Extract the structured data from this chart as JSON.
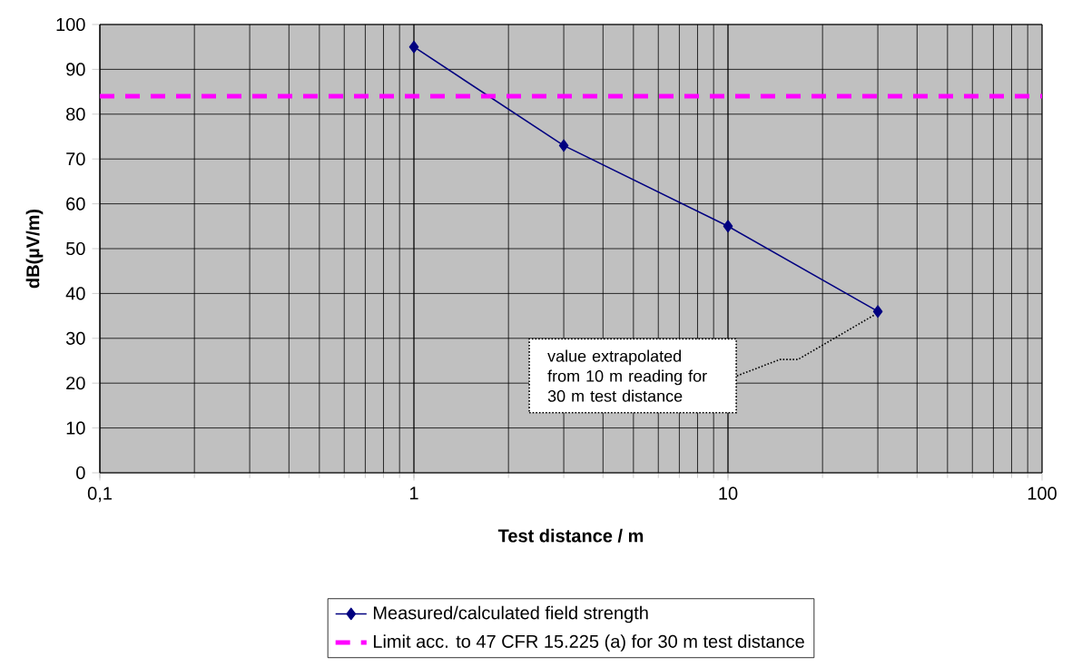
{
  "chart_data": {
    "type": "line",
    "xlabel": "Test distance / m",
    "ylabel": "dB(µV/m)",
    "x": [
      1,
      3,
      10,
      30
    ],
    "series": [
      {
        "name": "Measured/calculated field strength",
        "color": "#000080",
        "values": [
          95,
          73,
          55,
          36
        ]
      }
    ],
    "marker": "diamond",
    "line_style": "solid",
    "log": "x",
    "xlim": [
      0.1,
      100
    ],
    "xticks": [
      {
        "value": 0.1,
        "label": "0,1"
      },
      1,
      10,
      100
    ],
    "ylim": [
      0,
      100
    ],
    "yticks": [
      0,
      10,
      20,
      30,
      40,
      50,
      60,
      70,
      80,
      90,
      100
    ],
    "grid": true,
    "legend": "bottom",
    "ref_lines": [
      {
        "axis": "y",
        "value": 84,
        "label": "Limit acc. to 47 CFR 15.225 (a) for 30 m test distance",
        "color": "#ff00ff",
        "line_style": "dashed"
      }
    ],
    "annotations": [
      "value extrapolated from 10 m reading for 30 m test distance"
    ]
  }
}
